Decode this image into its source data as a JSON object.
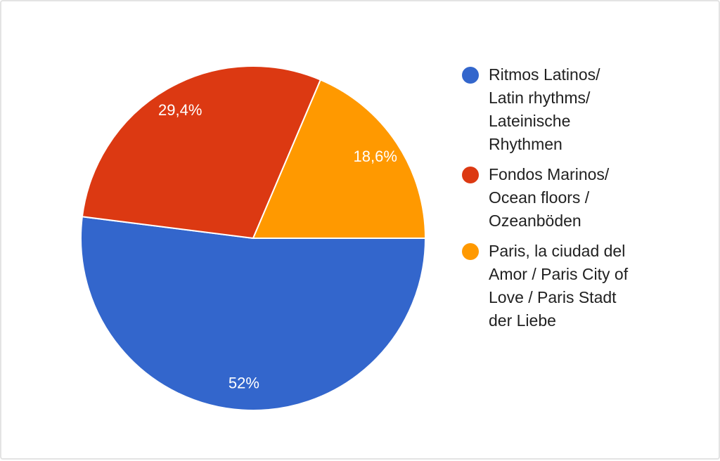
{
  "chart_data": {
    "type": "pie",
    "title": "",
    "labels": [
      "Ritmos Latinos/ Latin rhythms/ Lateinische Rhythmen",
      "Fondos Marinos/ Ocean floors / Ozeanböden",
      "Paris, la ciudad del Amor / Paris City of Love / Paris Stadt der Liebe"
    ],
    "legend_lines": [
      [
        "Ritmos Latinos/",
        "Latin rhythms/",
        "Lateinische",
        "Rhythmen"
      ],
      [
        "Fondos Marinos/",
        "Ocean floors /",
        "Ozeanböden"
      ],
      [
        "Paris, la ciudad del",
        "Amor / Paris City of",
        "Love / Paris Stadt",
        "der Liebe"
      ]
    ],
    "values": [
      52,
      29.4,
      18.6
    ],
    "value_labels": [
      "52%",
      "29,4%",
      "18,6%"
    ],
    "colors": [
      "#3366cc",
      "#dc3912",
      "#ff9900"
    ],
    "legend_position": "right"
  }
}
